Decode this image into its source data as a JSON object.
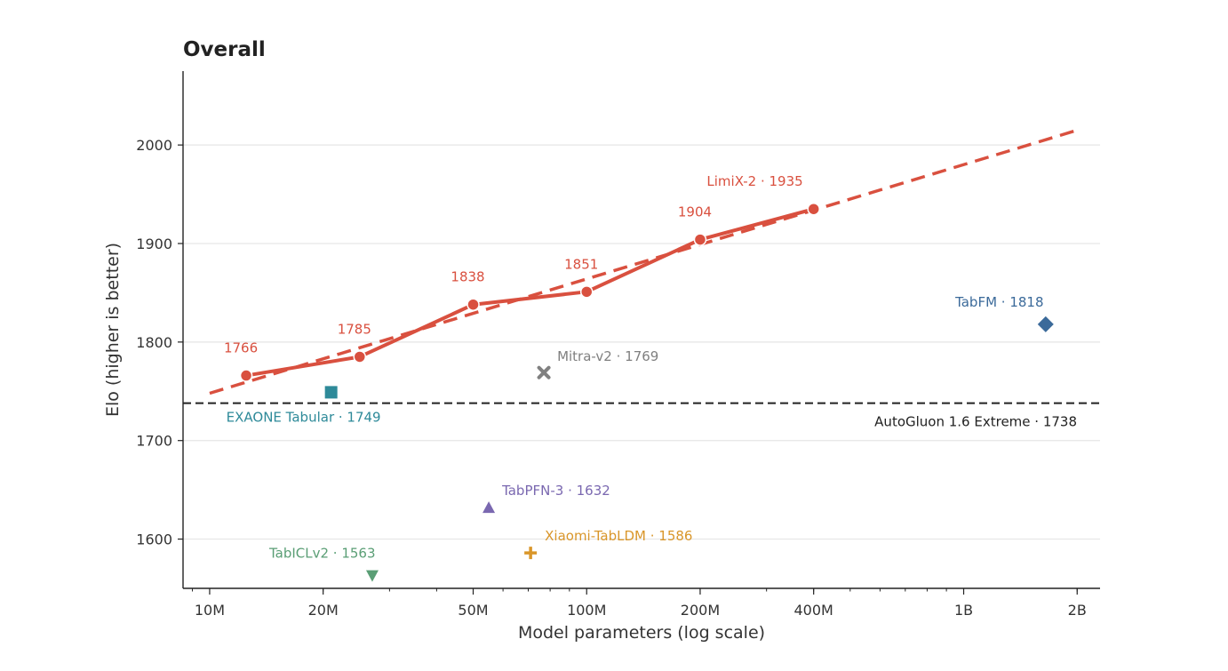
{
  "chart_data": {
    "type": "scatter",
    "title": "Overall",
    "xlabel": "Model parameters (log scale)",
    "ylabel": "Elo (higher is better)",
    "xscale": "log",
    "xlim": [
      8500000,
      2300000000
    ],
    "ylim": [
      1550,
      2075
    ],
    "grid": "horizontal",
    "x_ticks": [
      {
        "value": 10000000,
        "label": "10M"
      },
      {
        "value": 20000000,
        "label": "20M"
      },
      {
        "value": 50000000,
        "label": "50M"
      },
      {
        "value": 100000000,
        "label": "100M"
      },
      {
        "value": 200000000,
        "label": "200M"
      },
      {
        "value": 400000000,
        "label": "400M"
      },
      {
        "value": 1000000000,
        "label": "1B"
      },
      {
        "value": 2000000000,
        "label": "2B"
      }
    ],
    "y_ticks": [
      {
        "value": 1600,
        "label": "1600"
      },
      {
        "value": 1700,
        "label": "1700"
      },
      {
        "value": 1800,
        "label": "1800"
      },
      {
        "value": 1900,
        "label": "1900"
      },
      {
        "value": 2000,
        "label": "2000"
      }
    ],
    "main_series": {
      "color": "#d9503f",
      "x": [
        12500000,
        25000000,
        50000000,
        100000000,
        200000000,
        400000000
      ],
      "y": [
        1766,
        1785,
        1838,
        1851,
        1904,
        1935
      ],
      "labels": [
        "1766",
        "1785",
        "1838",
        "1851",
        "1904",
        "LimiX-2 · 1935"
      ]
    },
    "trend_line": {
      "color": "#d9503f",
      "x": [
        10000000,
        2000000000
      ],
      "y": [
        1748,
        2015
      ]
    },
    "reference_line": {
      "label": "AutoGluon 1.6 Extreme · 1738",
      "y": 1738,
      "color": "#222222"
    },
    "other_models": [
      {
        "label": "EXAONE Tabular · 1749",
        "x": 21000000,
        "y": 1749,
        "marker": "square",
        "color": "#2e8a99"
      },
      {
        "label": "Mitra-v2 · 1769",
        "x": 77000000,
        "y": 1769,
        "marker": "x",
        "color": "#808080"
      },
      {
        "label": "TabFM · 1818",
        "x": 1650000000,
        "y": 1818,
        "marker": "diamond",
        "color": "#3b6a9a"
      },
      {
        "label": "TabPFN-3 · 1632",
        "x": 55000000,
        "y": 1632,
        "marker": "triangle-up",
        "color": "#7a68b0"
      },
      {
        "label": "Xiaomi-TabLDM · 1586",
        "x": 71000000,
        "y": 1586,
        "marker": "plus",
        "color": "#d9962a"
      },
      {
        "label": "TabICLv2 · 1563",
        "x": 27000000,
        "y": 1563,
        "marker": "triangle-down",
        "color": "#5a9e75"
      }
    ]
  }
}
